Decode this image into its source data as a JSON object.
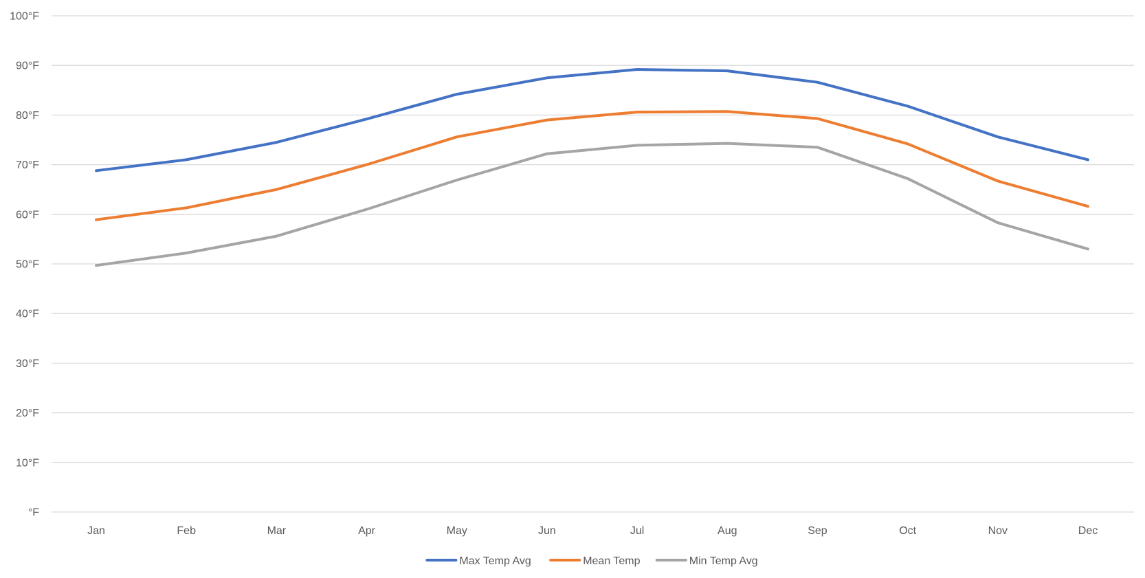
{
  "chart_data": {
    "type": "line",
    "title": "",
    "xlabel": "",
    "ylabel": "",
    "categories": [
      "Jan",
      "Feb",
      "Mar",
      "Apr",
      "May",
      "Jun",
      "Jul",
      "Aug",
      "Sep",
      "Oct",
      "Nov",
      "Dec"
    ],
    "ylim": [
      0,
      100
    ],
    "yticks": [
      0,
      10,
      20,
      30,
      40,
      50,
      60,
      70,
      80,
      90,
      100
    ],
    "ytick_labels": [
      "°F",
      "10°F",
      "20°F",
      "30°F",
      "40°F",
      "50°F",
      "60°F",
      "70°F",
      "80°F",
      "90°F",
      "100°F"
    ],
    "grid": true,
    "legend_position": "bottom",
    "series": [
      {
        "name": "Max Temp Avg",
        "color": "#4472c4",
        "values": [
          68.8,
          71.0,
          74.5,
          79.2,
          84.2,
          87.5,
          89.2,
          88.9,
          86.6,
          81.8,
          75.6,
          71.0
        ]
      },
      {
        "name": "Mean Temp",
        "color": "#ed7d31",
        "values": [
          58.9,
          61.3,
          65.0,
          70.0,
          75.6,
          79.0,
          80.6,
          80.7,
          79.3,
          74.2,
          66.7,
          61.6
        ]
      },
      {
        "name": "Min Temp Avg",
        "color": "#a5a5a5",
        "values": [
          49.7,
          52.2,
          55.6,
          61.0,
          66.9,
          72.2,
          73.9,
          74.3,
          73.5,
          67.2,
          58.3,
          53.0
        ]
      }
    ]
  }
}
